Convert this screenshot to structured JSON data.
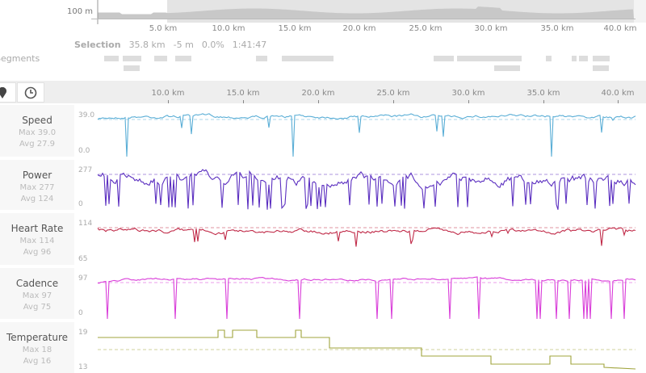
{
  "elevation": {
    "label": "100 m",
    "ticks": [
      "5.0 km",
      "10.0 km",
      "15.0 km",
      "20.0 km",
      "25.0 km",
      "30.0 km",
      "35.0 km",
      "40.0 km"
    ]
  },
  "selection": {
    "label": "Selection",
    "distance": "35.8 km",
    "elevation": "-5 m",
    "grade": "0.0%",
    "time": "1:41:47"
  },
  "segments": {
    "label": "Segments"
  },
  "toolbar": {
    "icons": [
      "map-pin-icon",
      "clock-icon"
    ],
    "ticks": [
      "10.0 km",
      "15.0 km",
      "20.0 km",
      "25.0 km",
      "30.0 km",
      "35.0 km",
      "40.0 km"
    ]
  },
  "panels": [
    {
      "id": "speed",
      "title": "Speed",
      "max": "Max 39.0",
      "avg": "Avg 27.9",
      "ymax": "39.0",
      "ymin": "0.0",
      "color": "#5aaed6"
    },
    {
      "id": "power",
      "title": "Power",
      "max": "Max 277",
      "avg": "Avg 124",
      "ymax": "277",
      "ymin": "0",
      "color": "#5b2fc0"
    },
    {
      "id": "heart-rate",
      "title": "Heart Rate",
      "max": "Max 114",
      "avg": "Avg 96",
      "ymax": "114",
      "ymin": "65",
      "color": "#c02a48"
    },
    {
      "id": "cadence",
      "title": "Cadence",
      "max": "Max 97",
      "avg": "Avg 75",
      "ymax": "97",
      "ymin": "0",
      "color": "#d93ed9"
    },
    {
      "id": "temperature",
      "title": "Temperature",
      "max": "Max 18",
      "avg": "Avg 16",
      "ymax": "19",
      "ymin": "13",
      "color": "#a0a43c"
    }
  ]
}
